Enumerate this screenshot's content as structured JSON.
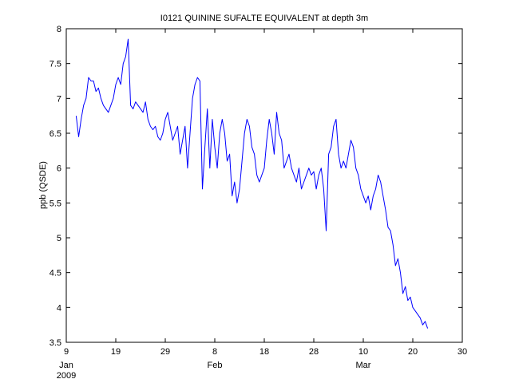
{
  "chart_data": {
    "type": "line",
    "title": "I0121 QUININE SUFALTE EQUIVALENT at depth 3m",
    "y_label": "ppb (QSDE)",
    "year_label": "2009",
    "month_labels": [
      {
        "value": 9,
        "label": "Jan"
      },
      {
        "value": 39,
        "label": "Feb"
      },
      {
        "value": 69,
        "label": "Mar"
      }
    ],
    "xlim": [
      9,
      89
    ],
    "xticks": [
      9,
      19,
      29,
      {
        "value": 39,
        "label": "8"
      },
      {
        "value": 49,
        "label": "18"
      },
      {
        "value": 59,
        "label": "28"
      },
      {
        "value": 69,
        "label": "10"
      },
      {
        "value": 79,
        "label": "20"
      },
      {
        "value": 89,
        "label": "30"
      }
    ],
    "ylim": [
      3.5,
      8
    ],
    "yticks": [
      3.5,
      4,
      4.5,
      5,
      5.5,
      6,
      6.5,
      7,
      7.5,
      8
    ],
    "grid": false,
    "x": [
      11,
      11.5,
      12,
      12.5,
      13,
      13.5,
      14,
      14.5,
      15,
      15.5,
      16,
      16.5,
      17,
      17.5,
      18,
      18.5,
      19,
      19.5,
      20,
      20.5,
      21,
      21.5,
      22,
      22.5,
      23,
      23.5,
      24,
      24.5,
      25,
      25.5,
      26,
      26.5,
      27,
      27.5,
      28,
      28.5,
      29,
      29.5,
      30,
      30.5,
      31,
      31.5,
      32,
      32.5,
      33,
      33.5,
      34,
      34.5,
      35,
      35.5,
      36,
      36.5,
      37,
      37.5,
      38,
      38.5,
      39,
      39.5,
      40,
      40.5,
      41,
      41.5,
      42,
      42.5,
      43,
      43.5,
      44,
      44.5,
      45,
      45.5,
      46,
      46.5,
      47,
      47.5,
      48,
      48.5,
      49,
      49.5,
      50,
      50.5,
      51,
      51.5,
      52,
      52.5,
      53,
      53.5,
      54,
      54.5,
      55,
      55.5,
      56,
      56.5,
      57,
      57.5,
      58,
      58.5,
      59,
      59.5,
      60,
      60.5,
      61,
      61.5,
      62,
      62.5,
      63,
      63.5,
      64,
      64.5,
      65,
      65.5,
      66,
      66.5,
      67,
      67.5,
      68,
      68.5,
      69,
      69.5,
      70,
      70.5,
      71,
      71.5,
      72,
      72.5,
      73,
      73.5,
      74,
      74.5,
      75,
      75.5,
      76,
      76.5,
      77,
      77.5,
      78,
      78.5,
      79,
      79.5,
      80,
      80.5,
      81,
      81.5,
      82
    ],
    "series": [
      {
        "color": "#0000ff",
        "values": [
          6.75,
          6.45,
          6.7,
          6.9,
          7.0,
          7.3,
          7.25,
          7.25,
          7.1,
          7.15,
          7.0,
          6.9,
          6.85,
          6.8,
          6.9,
          7.0,
          7.2,
          7.3,
          7.2,
          7.5,
          7.6,
          7.85,
          6.9,
          6.85,
          6.95,
          6.9,
          6.85,
          6.8,
          6.95,
          6.7,
          6.6,
          6.55,
          6.6,
          6.45,
          6.4,
          6.5,
          6.7,
          6.8,
          6.6,
          6.4,
          6.5,
          6.6,
          6.2,
          6.4,
          6.6,
          6.0,
          6.5,
          7.0,
          7.2,
          7.3,
          7.25,
          5.7,
          6.3,
          6.85,
          6.0,
          6.7,
          6.3,
          6.0,
          6.5,
          6.7,
          6.5,
          6.1,
          6.2,
          5.6,
          5.8,
          5.5,
          5.7,
          6.1,
          6.5,
          6.7,
          6.6,
          6.3,
          6.2,
          5.9,
          5.8,
          5.9,
          6.0,
          6.4,
          6.7,
          6.5,
          6.2,
          6.8,
          6.5,
          6.4,
          6.0,
          6.1,
          6.2,
          6.0,
          5.9,
          5.8,
          6.0,
          5.7,
          5.8,
          5.9,
          6.0,
          5.9,
          5.95,
          5.7,
          5.9,
          6.0,
          5.7,
          5.1,
          6.2,
          6.3,
          6.6,
          6.7,
          6.2,
          6.0,
          6.1,
          6.0,
          6.2,
          6.4,
          6.3,
          6.0,
          5.9,
          5.7,
          5.6,
          5.5,
          5.6,
          5.4,
          5.6,
          5.7,
          5.9,
          5.8,
          5.6,
          5.4,
          5.15,
          5.1,
          4.9,
          4.6,
          4.7,
          4.5,
          4.2,
          4.3,
          4.1,
          4.15,
          4.0,
          3.95,
          3.9,
          3.85,
          3.75,
          3.8,
          3.7
        ]
      }
    ]
  }
}
